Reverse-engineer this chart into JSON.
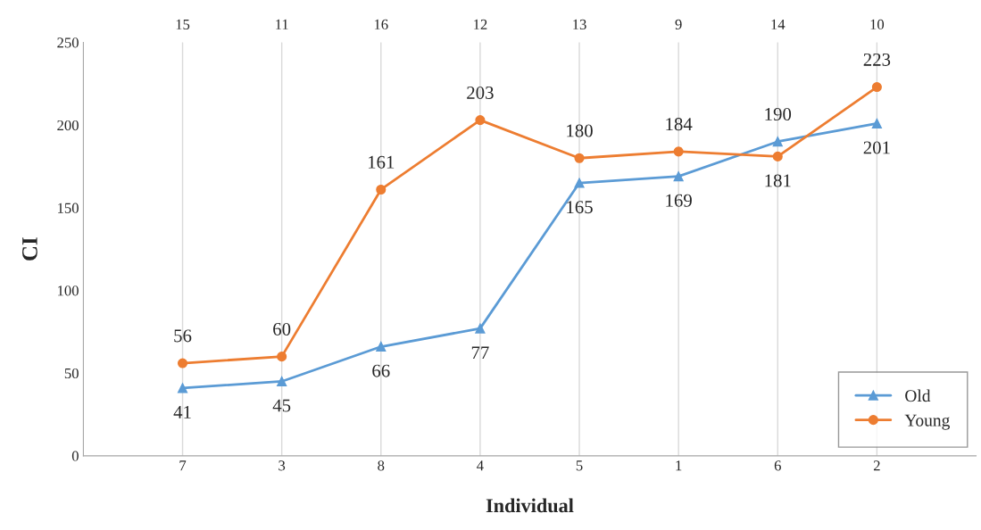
{
  "chart_data": {
    "type": "line",
    "xlabel": "Individual",
    "ylabel": "CI",
    "categories": [
      "7",
      "3",
      "8",
      "4",
      "5",
      "1",
      "6",
      "2"
    ],
    "annotations": [
      "15",
      "11",
      "16",
      "12",
      "13",
      "9",
      "14",
      "10"
    ],
    "ylim": [
      0,
      250
    ],
    "yticks": [
      0,
      50,
      100,
      150,
      200,
      250
    ],
    "grid": "x",
    "legend": "bottom right",
    "data_labels": true,
    "series": [
      {
        "name": "Old",
        "color": "#5b9bd5",
        "marker": "triangle",
        "values": [
          41,
          45,
          66,
          77,
          165,
          169,
          190,
          201
        ]
      },
      {
        "name": "Young",
        "color": "#ed7d31",
        "marker": "circle",
        "values": [
          56,
          60,
          161,
          203,
          180,
          184,
          181,
          223
        ]
      }
    ]
  }
}
